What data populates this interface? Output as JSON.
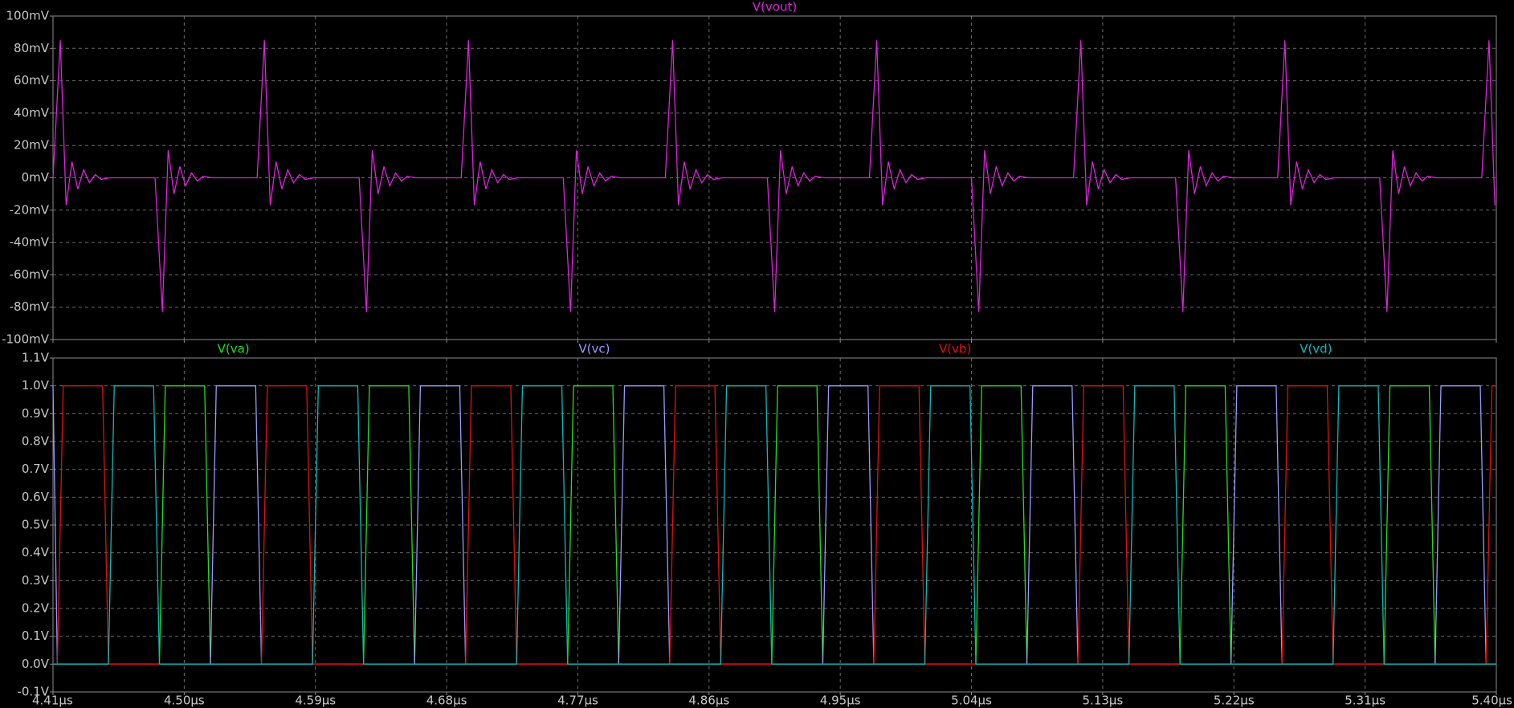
{
  "chart_data": [
    {
      "type": "line",
      "xlim": [
        4.41,
        5.4
      ],
      "xticks": [
        4.41,
        4.5,
        4.59,
        4.68,
        4.77,
        4.86,
        4.95,
        5.04,
        5.13,
        5.22,
        5.31,
        5.4
      ],
      "ylim": [
        -100,
        100
      ],
      "yticks": [
        {
          "value": -100,
          "label": "-100mV"
        },
        {
          "value": -80,
          "label": "-80mV"
        },
        {
          "value": -60,
          "label": "-60mV"
        },
        {
          "value": -40,
          "label": "-40mV"
        },
        {
          "value": -20,
          "label": "-20mV"
        },
        {
          "value": 0,
          "label": "0mV"
        },
        {
          "value": 20,
          "label": "20mV"
        },
        {
          "value": 40,
          "label": "40mV"
        },
        {
          "value": 60,
          "label": "60mV"
        },
        {
          "value": 80,
          "label": "80mV"
        },
        {
          "value": 100,
          "label": "100mV"
        }
      ],
      "grid": true,
      "series": [
        {
          "name": "V(vout)",
          "color": "#e020e0",
          "x": [
            4.41,
            4.415,
            4.419,
            4.423,
            4.427,
            4.431,
            4.435,
            4.439,
            4.443,
            4.449,
            4.48,
            4.485,
            4.489,
            4.493,
            4.497,
            4.501,
            4.505,
            4.509,
            4.513,
            4.519,
            4.55,
            4.555,
            4.559,
            4.563,
            4.567,
            4.571,
            4.575,
            4.579,
            4.583,
            4.589,
            4.62,
            4.625,
            4.629,
            4.633,
            4.637,
            4.641,
            4.645,
            4.649,
            4.653,
            4.659,
            4.69,
            4.695,
            4.699,
            4.703,
            4.707,
            4.711,
            4.715,
            4.719,
            4.723,
            4.729,
            4.76,
            4.765,
            4.769,
            4.773,
            4.777,
            4.781,
            4.785,
            4.789,
            4.793,
            4.799,
            4.83,
            4.835,
            4.839,
            4.843,
            4.847,
            4.851,
            4.855,
            4.859,
            4.863,
            4.869,
            4.9,
            4.905,
            4.909,
            4.913,
            4.917,
            4.921,
            4.925,
            4.929,
            4.933,
            4.939,
            4.97,
            4.975,
            4.979,
            4.983,
            4.987,
            4.991,
            4.995,
            4.999,
            5.003,
            5.009,
            5.04,
            5.045,
            5.049,
            5.053,
            5.057,
            5.061,
            5.065,
            5.069,
            5.073,
            5.079,
            5.11,
            5.115,
            5.119,
            5.123,
            5.127,
            5.131,
            5.135,
            5.139,
            5.143,
            5.149,
            5.18,
            5.185,
            5.189,
            5.193,
            5.197,
            5.201,
            5.205,
            5.209,
            5.213,
            5.219,
            5.25,
            5.255,
            5.259,
            5.263,
            5.267,
            5.271,
            5.275,
            5.279,
            5.283,
            5.289,
            5.32,
            5.325,
            5.329,
            5.333,
            5.337,
            5.341,
            5.345,
            5.349,
            5.353,
            5.359,
            5.39,
            5.395,
            5.399
          ],
          "values": [
            0,
            85,
            -17,
            10,
            -7,
            5,
            -3,
            2,
            -1,
            0,
            0,
            -83,
            17,
            -10,
            7,
            -5,
            3,
            -2,
            1,
            0,
            0,
            85,
            -17,
            10,
            -7,
            5,
            -3,
            2,
            -1,
            0,
            0,
            -83,
            17,
            -10,
            7,
            -5,
            3,
            -2,
            1,
            0,
            0,
            85,
            -17,
            10,
            -7,
            5,
            -3,
            2,
            -1,
            0,
            0,
            -83,
            17,
            -10,
            7,
            -5,
            3,
            -2,
            1,
            0,
            0,
            85,
            -17,
            10,
            -7,
            5,
            -3,
            2,
            -1,
            0,
            0,
            -83,
            17,
            -10,
            7,
            -5,
            3,
            -2,
            1,
            0,
            0,
            85,
            -17,
            10,
            -7,
            5,
            -3,
            2,
            -1,
            0,
            0,
            -83,
            17,
            -10,
            7,
            -5,
            3,
            -2,
            1,
            0,
            0,
            85,
            -17,
            10,
            -7,
            5,
            -3,
            2,
            -1,
            0,
            0,
            -83,
            17,
            -10,
            7,
            -5,
            3,
            -2,
            1,
            0,
            0,
            85,
            -17,
            10,
            -7,
            5,
            -3,
            2,
            -1,
            0,
            0,
            -83,
            17,
            -10,
            7,
            -5,
            3,
            -2,
            1,
            0,
            0,
            85,
            -17
          ]
        }
      ]
    },
    {
      "type": "line",
      "xlim": [
        4.41,
        5.4
      ],
      "xticks": [
        {
          "value": 4.41,
          "label": "4.41µs"
        },
        {
          "value": 4.5,
          "label": "4.50µs"
        },
        {
          "value": 4.59,
          "label": "4.59µs"
        },
        {
          "value": 4.68,
          "label": "4.68µs"
        },
        {
          "value": 4.77,
          "label": "4.77µs"
        },
        {
          "value": 4.86,
          "label": "4.86µs"
        },
        {
          "value": 4.95,
          "label": "4.95µs"
        },
        {
          "value": 5.04,
          "label": "5.04µs"
        },
        {
          "value": 5.13,
          "label": "5.13µs"
        },
        {
          "value": 5.22,
          "label": "5.22µs"
        },
        {
          "value": 5.31,
          "label": "5.31µs"
        },
        {
          "value": 5.4,
          "label": "5.40µs"
        }
      ],
      "ylim": [
        -0.1,
        1.1
      ],
      "yticks": [
        {
          "value": -0.1,
          "label": "-0.1V"
        },
        {
          "value": 0.0,
          "label": "0.0V"
        },
        {
          "value": 0.1,
          "label": "0.1V"
        },
        {
          "value": 0.2,
          "label": "0.2V"
        },
        {
          "value": 0.3,
          "label": "0.3V"
        },
        {
          "value": 0.4,
          "label": "0.4V"
        },
        {
          "value": 0.5,
          "label": "0.5V"
        },
        {
          "value": 0.6,
          "label": "0.6V"
        },
        {
          "value": 0.7,
          "label": "0.7V"
        },
        {
          "value": 0.8,
          "label": "0.8V"
        },
        {
          "value": 0.9,
          "label": "0.9V"
        },
        {
          "value": 1.0,
          "label": "1.0V"
        },
        {
          "value": 1.1,
          "label": "1.1V"
        }
      ],
      "grid": true,
      "series": [
        {
          "name": "V(va)",
          "color": "#20e020",
          "x": [
            4.41,
            4.483,
            4.487,
            4.514,
            4.518,
            4.623,
            4.627,
            4.654,
            4.658,
            4.763,
            4.767,
            4.794,
            4.798,
            4.903,
            4.907,
            4.934,
            4.938,
            5.043,
            5.047,
            5.074,
            5.078,
            5.183,
            5.187,
            5.214,
            5.218,
            5.323,
            5.327,
            5.354,
            5.358,
            5.4
          ],
          "values": [
            0,
            0,
            1,
            1,
            0,
            0,
            1,
            1,
            0,
            0,
            1,
            1,
            0,
            0,
            1,
            1,
            0,
            0,
            1,
            1,
            0,
            0,
            1,
            1,
            0,
            0,
            1,
            1,
            0,
            0
          ]
        },
        {
          "name": "V(vc)",
          "color": "#9a9aff",
          "x": [
            4.41,
            4.413,
            4.518,
            4.522,
            4.549,
            4.553,
            4.658,
            4.662,
            4.689,
            4.693,
            4.798,
            4.802,
            4.829,
            4.833,
            4.938,
            4.942,
            4.969,
            4.973,
            5.078,
            5.082,
            5.109,
            5.113,
            5.218,
            5.222,
            5.249,
            5.253,
            5.358,
            5.362,
            5.389,
            5.393,
            5.4
          ],
          "values": [
            1,
            0,
            0,
            1,
            1,
            0,
            0,
            1,
            1,
            0,
            0,
            1,
            1,
            0,
            0,
            1,
            1,
            0,
            0,
            1,
            1,
            0,
            0,
            1,
            1,
            0,
            0,
            1,
            1,
            0,
            0
          ]
        },
        {
          "name": "V(vb)",
          "color": "#e01010",
          "x": [
            4.41,
            4.413,
            4.417,
            4.444,
            4.448,
            4.553,
            4.557,
            4.584,
            4.588,
            4.693,
            4.697,
            4.724,
            4.728,
            4.833,
            4.837,
            4.864,
            4.868,
            4.973,
            4.977,
            5.004,
            5.008,
            5.113,
            5.117,
            5.144,
            5.148,
            5.253,
            5.257,
            5.284,
            5.288,
            5.393,
            5.397,
            5.4
          ],
          "values": [
            0,
            0,
            1,
            1,
            0,
            0,
            1,
            1,
            0,
            0,
            1,
            1,
            0,
            0,
            1,
            1,
            0,
            0,
            1,
            1,
            0,
            0,
            1,
            1,
            0,
            0,
            1,
            1,
            0,
            0,
            1,
            1
          ]
        },
        {
          "name": "V(vd)",
          "color": "#10b8b8",
          "x": [
            4.41,
            4.448,
            4.452,
            4.479,
            4.483,
            4.588,
            4.592,
            4.619,
            4.623,
            4.728,
            4.732,
            4.759,
            4.763,
            4.868,
            4.872,
            4.899,
            4.903,
            5.008,
            5.012,
            5.039,
            5.043,
            5.148,
            5.152,
            5.179,
            5.183,
            5.288,
            5.292,
            5.319,
            5.323,
            5.4
          ],
          "values": [
            0,
            0,
            1,
            1,
            0,
            0,
            1,
            1,
            0,
            0,
            1,
            1,
            0,
            0,
            1,
            1,
            0,
            0,
            1,
            1,
            0,
            0,
            1,
            1,
            0,
            0,
            1,
            1,
            0,
            0
          ]
        }
      ]
    }
  ]
}
